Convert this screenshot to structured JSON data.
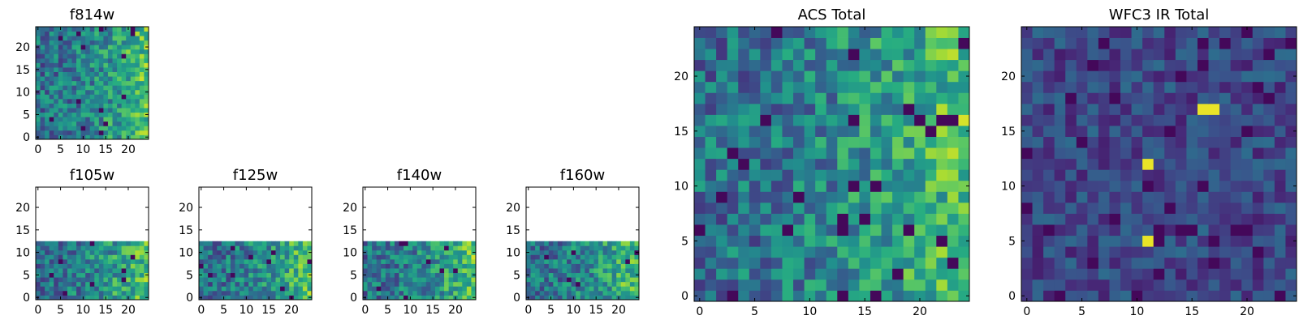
{
  "chart_data": [
    {
      "id": "f814w",
      "type": "heatmap",
      "title": "f814w",
      "grid_size": 25,
      "xlim": [
        -0.5,
        24.5
      ],
      "ylim": [
        -0.5,
        24.5
      ],
      "xticks": [
        0,
        5,
        10,
        15,
        20
      ],
      "yticks": [
        0,
        5,
        10,
        15,
        20
      ],
      "colormap": "viridis",
      "pattern": "noise",
      "bright_side": "right",
      "valid_rows": [
        -0.5,
        24.5
      ],
      "seed": 11
    },
    {
      "id": "f105w",
      "type": "heatmap",
      "title": "f105w",
      "grid_size": 25,
      "xlim": [
        -0.5,
        24.5
      ],
      "ylim": [
        -0.5,
        24.5
      ],
      "xticks": [
        0,
        5,
        10,
        15,
        20
      ],
      "yticks": [
        0,
        5,
        10,
        15,
        20
      ],
      "colormap": "viridis",
      "pattern": "noise",
      "bright_side": "right",
      "valid_rows": [
        -0.5,
        12.5
      ],
      "seed": 23
    },
    {
      "id": "f125w",
      "type": "heatmap",
      "title": "f125w",
      "grid_size": 25,
      "xlim": [
        -0.5,
        24.5
      ],
      "ylim": [
        -0.5,
        24.5
      ],
      "xticks": [
        0,
        5,
        10,
        15,
        20
      ],
      "yticks": [
        0,
        5,
        10,
        15,
        20
      ],
      "colormap": "viridis",
      "pattern": "noise",
      "bright_side": "right",
      "valid_rows": [
        -0.5,
        12.5
      ],
      "seed": 37
    },
    {
      "id": "f140w",
      "type": "heatmap",
      "title": "f140w",
      "grid_size": 25,
      "xlim": [
        -0.5,
        24.5
      ],
      "ylim": [
        -0.5,
        24.5
      ],
      "xticks": [
        0,
        5,
        10,
        15,
        20
      ],
      "yticks": [
        0,
        5,
        10,
        15,
        20
      ],
      "colormap": "viridis",
      "pattern": "noise",
      "bright_side": "right",
      "valid_rows": [
        -0.5,
        12.5
      ],
      "seed": 41
    },
    {
      "id": "f160w",
      "type": "heatmap",
      "title": "f160w",
      "grid_size": 25,
      "xlim": [
        -0.5,
        24.5
      ],
      "ylim": [
        -0.5,
        24.5
      ],
      "xticks": [
        0,
        5,
        10,
        15,
        20
      ],
      "yticks": [
        0,
        5,
        10,
        15,
        20
      ],
      "colormap": "viridis",
      "pattern": "noise",
      "bright_side": "right",
      "valid_rows": [
        -0.5,
        12.5
      ],
      "seed": 53
    },
    {
      "id": "acs_total",
      "type": "heatmap",
      "title": "ACS Total",
      "grid_size": 25,
      "xlim": [
        -0.5,
        24.5
      ],
      "ylim": [
        -0.5,
        24.5
      ],
      "xticks": [
        0,
        5,
        10,
        15,
        20
      ],
      "yticks": [
        0,
        5,
        10,
        15,
        20
      ],
      "colormap": "viridis",
      "pattern": "noise",
      "bright_side": "right",
      "valid_rows": [
        -0.5,
        24.5
      ],
      "seed": 67
    },
    {
      "id": "wfc3_ir_total",
      "type": "heatmap",
      "title": "WFC3 IR Total",
      "grid_size": 25,
      "xlim": [
        -0.5,
        24.5
      ],
      "ylim": [
        -0.5,
        24.5
      ],
      "xticks": [
        0,
        5,
        10,
        15,
        20
      ],
      "yticks": [
        0,
        5,
        10,
        15,
        20
      ],
      "colormap": "viridis",
      "pattern": "dark_with_sources",
      "valid_rows": [
        -0.5,
        24.5
      ],
      "seed": 79,
      "sources": [
        {
          "x": 16.5,
          "y": 17.5
        },
        {
          "x": 17.5,
          "y": 17.5
        },
        {
          "x": 11.5,
          "y": 12.5
        },
        {
          "x": 11.5,
          "y": 5.5
        }
      ]
    }
  ]
}
